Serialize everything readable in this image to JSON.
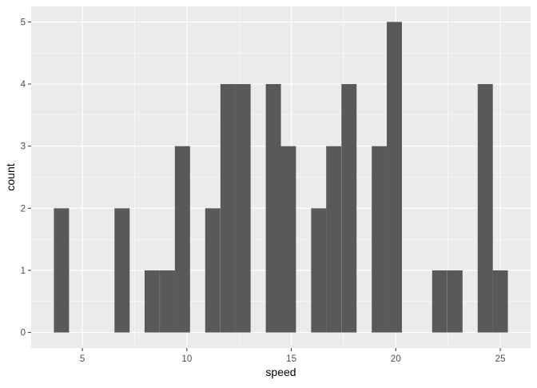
{
  "chart_data": {
    "type": "bar",
    "subtype": "histogram",
    "xlabel": "speed",
    "ylabel": "count",
    "bin_width": 0.7241,
    "bin_centers": [
      4.0,
      4.72,
      5.45,
      6.17,
      6.9,
      7.62,
      8.34,
      9.07,
      9.79,
      10.52,
      11.24,
      11.97,
      12.69,
      13.41,
      14.14,
      14.86,
      15.59,
      16.31,
      17.03,
      17.76,
      18.48,
      19.21,
      19.93,
      20.66,
      21.38,
      22.1,
      22.83,
      23.55,
      24.28,
      25.0
    ],
    "values": [
      2,
      0,
      0,
      0,
      2,
      0,
      1,
      1,
      3,
      0,
      2,
      4,
      4,
      0,
      4,
      3,
      0,
      2,
      3,
      4,
      0,
      3,
      5,
      0,
      0,
      1,
      1,
      0,
      4,
      1
    ],
    "xlim": [
      2.55,
      26.45
    ],
    "ylim": [
      -0.25,
      5.25
    ],
    "x_ticks": [
      5,
      10,
      15,
      20,
      25
    ],
    "y_ticks": [
      0,
      1,
      2,
      3,
      4,
      5
    ],
    "grid": true,
    "colors": {
      "panel": "#EBEBEB",
      "grid": "#FFFFFF",
      "bar": "#595959",
      "tick_text": "#4D4D4D"
    }
  }
}
